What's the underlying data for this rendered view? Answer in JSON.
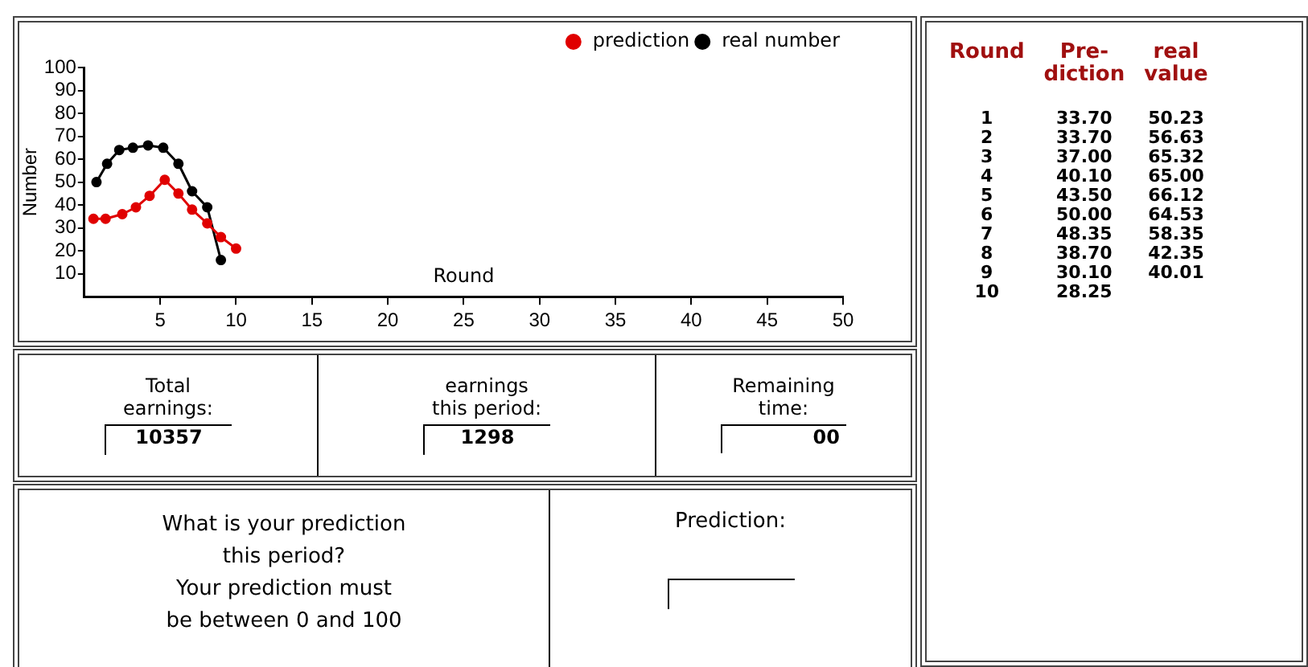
{
  "chart_data": [
    {
      "type": "line",
      "xlabel": "Round",
      "ylabel": "Number",
      "xlim": [
        0,
        50
      ],
      "xticks": [
        5,
        10,
        15,
        20,
        25,
        30,
        35,
        40,
        45,
        50
      ],
      "ylim": [
        0,
        100
      ],
      "yticks": [
        10,
        20,
        30,
        40,
        50,
        60,
        70,
        80,
        90,
        100
      ],
      "grid": false,
      "legend": "top right",
      "marker": "circle",
      "series": [
        {
          "name": "prediction",
          "color": "#e00000",
          "x": [
            0.6,
            1.4,
            2.5,
            3.4,
            4.3,
            5.3,
            6.2,
            7.1,
            8.1,
            9.0,
            10.0
          ],
          "values": [
            34,
            34,
            36,
            39,
            44,
            51,
            45,
            38,
            32,
            26,
            21
          ]
        },
        {
          "name": "real number",
          "color": "#000000",
          "x": [
            0.8,
            1.5,
            2.3,
            3.2,
            4.2,
            5.2,
            6.2,
            7.1,
            8.1,
            9.0
          ],
          "values": [
            50,
            58,
            64,
            65,
            66,
            65,
            58,
            46,
            39,
            16
          ]
        }
      ]
    },
    {
      "type": "heatmap",
      "ylabel": "Round",
      "categories": [
        "Pre-\ndiction",
        "real\nvalue"
      ],
      "y_categories": [
        "1",
        "2",
        "3",
        "4",
        "5",
        "6",
        "7",
        "8",
        "9",
        "10"
      ],
      "cells": [
        [
          33.7,
          50.23
        ],
        [
          33.7,
          56.63
        ],
        [
          37.0,
          65.32
        ],
        [
          40.1,
          65.0
        ],
        [
          43.5,
          66.12
        ],
        [
          50.0,
          64.53
        ],
        [
          48.35,
          58.35
        ],
        [
          38.7,
          42.35
        ],
        [
          30.1,
          40.01
        ],
        [
          28.25,
          null
        ]
      ],
      "cell_labels": [
        [
          "33.70",
          "50.23"
        ],
        [
          "33.70",
          "56.63"
        ],
        [
          "37.00",
          "65.32"
        ],
        [
          "40.10",
          "65.00"
        ],
        [
          "43.50",
          "66.12"
        ],
        [
          "50.00",
          "64.53"
        ],
        [
          "48.35",
          "58.35"
        ],
        [
          "38.70",
          "42.35"
        ],
        [
          "30.10",
          "40.01"
        ],
        [
          "28.25",
          null
        ]
      ]
    },
    {
      "type": "other",
      "annotations": [
        "Total\nearnings:",
        "10357",
        "earnings\nthis period:",
        "1298",
        "Remaining\ntime:",
        "00",
        "What is your prediction\nthis period?\nYour prediction must\nbe between 0 and 100",
        "Prediction:"
      ]
    }
  ]
}
